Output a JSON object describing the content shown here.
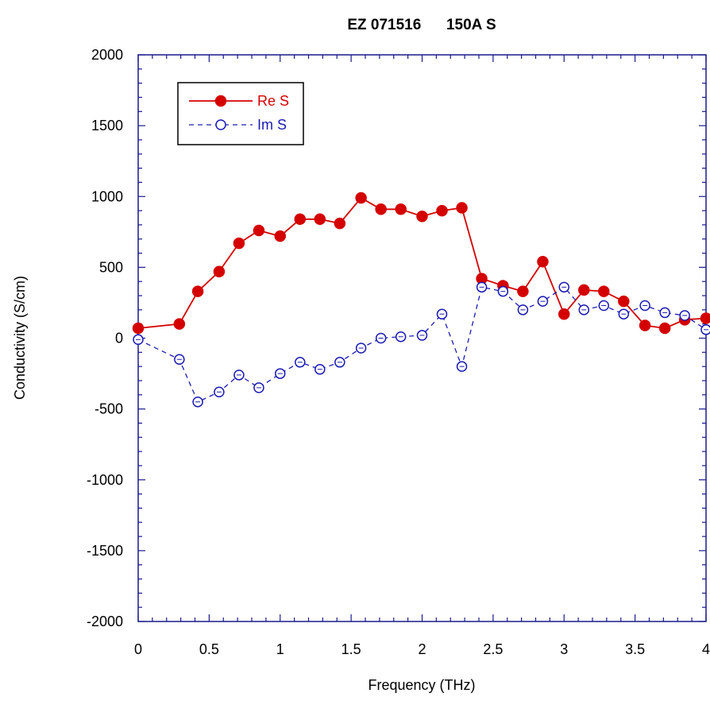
{
  "chart_data": {
    "type": "line",
    "title": "EZ 071516      150A S",
    "xlabel": "Frequency (THz)",
    "ylabel": "Conductivity (S/cm)",
    "xlim": [
      0,
      4
    ],
    "ylim": [
      -2000,
      2000
    ],
    "xticks": [
      0,
      0.5,
      1,
      1.5,
      2,
      2.5,
      3,
      3.5,
      4
    ],
    "xtick_labels": [
      "0",
      "0.5",
      "1",
      "1.5",
      "2",
      "2.5",
      "3",
      "3.5",
      "4"
    ],
    "yticks": [
      -2000,
      -1500,
      -1000,
      -500,
      0,
      500,
      1000,
      1500,
      2000
    ],
    "ytick_labels": [
      "-2000",
      "-1500",
      "-1000",
      "-500",
      "0",
      "500",
      "1000",
      "1500",
      "2000"
    ],
    "x_minor_tick_step": 0.1,
    "y_minor_tick_step": 100,
    "grid": false,
    "legend_position": "top-left",
    "colors": {
      "frame": "#1a1a8c",
      "re_series": "#d40000",
      "im_series": "#1a1ab4"
    },
    "series": [
      {
        "name": "Re S",
        "line_style": "solid",
        "marker": "filled-circle",
        "points": [
          [
            0.0,
            70
          ],
          [
            0.29,
            100
          ],
          [
            0.42,
            330
          ],
          [
            0.57,
            470
          ],
          [
            0.71,
            670
          ],
          [
            0.85,
            760
          ],
          [
            1.0,
            720
          ],
          [
            1.14,
            840
          ],
          [
            1.28,
            840
          ],
          [
            1.42,
            810
          ],
          [
            1.57,
            990
          ],
          [
            1.71,
            910
          ],
          [
            1.85,
            910
          ],
          [
            2.0,
            860
          ],
          [
            2.14,
            900
          ],
          [
            2.28,
            920
          ],
          [
            2.42,
            420
          ],
          [
            2.57,
            370
          ],
          [
            2.71,
            330
          ],
          [
            2.85,
            540
          ],
          [
            3.0,
            170
          ],
          [
            3.14,
            340
          ],
          [
            3.28,
            330
          ],
          [
            3.42,
            260
          ],
          [
            3.57,
            90
          ],
          [
            3.71,
            70
          ],
          [
            3.85,
            130
          ],
          [
            4.0,
            140
          ]
        ]
      },
      {
        "name": "Im S",
        "line_style": "dashed",
        "marker": "open-circle",
        "points": [
          [
            0.0,
            -10
          ],
          [
            0.29,
            -150
          ],
          [
            0.42,
            -450
          ],
          [
            0.57,
            -380
          ],
          [
            0.71,
            -260
          ],
          [
            0.85,
            -350
          ],
          [
            1.0,
            -250
          ],
          [
            1.14,
            -170
          ],
          [
            1.28,
            -220
          ],
          [
            1.42,
            -170
          ],
          [
            1.57,
            -70
          ],
          [
            1.71,
            0
          ],
          [
            1.85,
            10
          ],
          [
            2.0,
            20
          ],
          [
            2.14,
            170
          ],
          [
            2.28,
            -200
          ],
          [
            2.42,
            360
          ],
          [
            2.57,
            330
          ],
          [
            2.71,
            200
          ],
          [
            2.85,
            260
          ],
          [
            3.0,
            360
          ],
          [
            3.14,
            200
          ],
          [
            3.28,
            230
          ],
          [
            3.42,
            170
          ],
          [
            3.57,
            230
          ],
          [
            3.71,
            180
          ],
          [
            3.85,
            160
          ],
          [
            4.0,
            60
          ]
        ]
      }
    ]
  }
}
